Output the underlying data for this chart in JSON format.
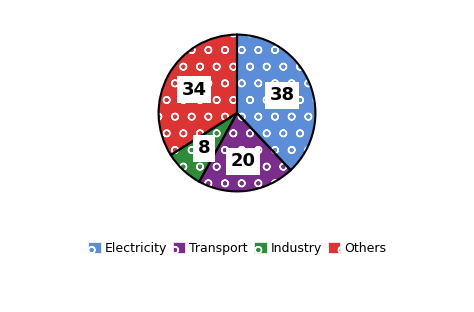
{
  "labels": [
    "Electricity",
    "Transport",
    "Industry",
    "Others"
  ],
  "values": [
    38,
    20,
    8,
    34
  ],
  "colors": [
    "#5B8DD9",
    "#7B2D8B",
    "#2E8B3A",
    "#DD3333"
  ],
  "background_color": "#ffffff",
  "edge_color": "#111111",
  "startangle": 90,
  "label_fontsize": 13,
  "legend_fontsize": 9
}
